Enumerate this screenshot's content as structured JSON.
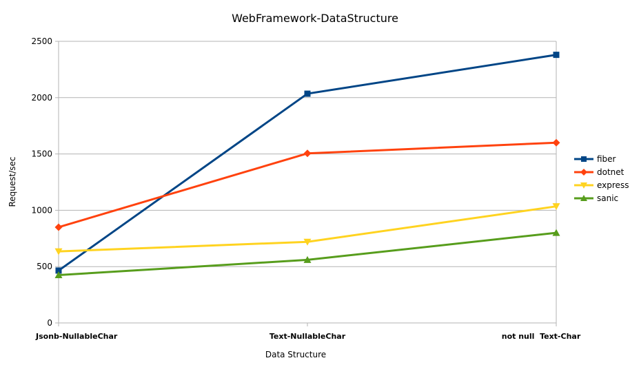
{
  "chart_data": {
    "type": "line",
    "title": "WebFramework-DataStructure",
    "xlabel": "Data Structure",
    "ylabel": "Request/sec",
    "categories": [
      "Jsonb-NullableChar",
      "Text-NullableChar",
      "not null  Text-Char"
    ],
    "ylim": [
      0,
      2500
    ],
    "yticks": [
      0,
      500,
      1000,
      1500,
      2000,
      2500
    ],
    "grid": true,
    "legend": "right",
    "series": [
      {
        "name": "fiber",
        "values": [
          465,
          2035,
          2380
        ],
        "color": "#004586",
        "marker": "square"
      },
      {
        "name": "dotnet",
        "values": [
          850,
          1505,
          1600
        ],
        "color": "#ff420e",
        "marker": "diamond"
      },
      {
        "name": "express",
        "values": [
          635,
          720,
          1035
        ],
        "color": "#ffd320",
        "marker": "triangle-down"
      },
      {
        "name": "sanic",
        "values": [
          425,
          560,
          800
        ],
        "color": "#579d1c",
        "marker": "triangle-up"
      }
    ]
  }
}
